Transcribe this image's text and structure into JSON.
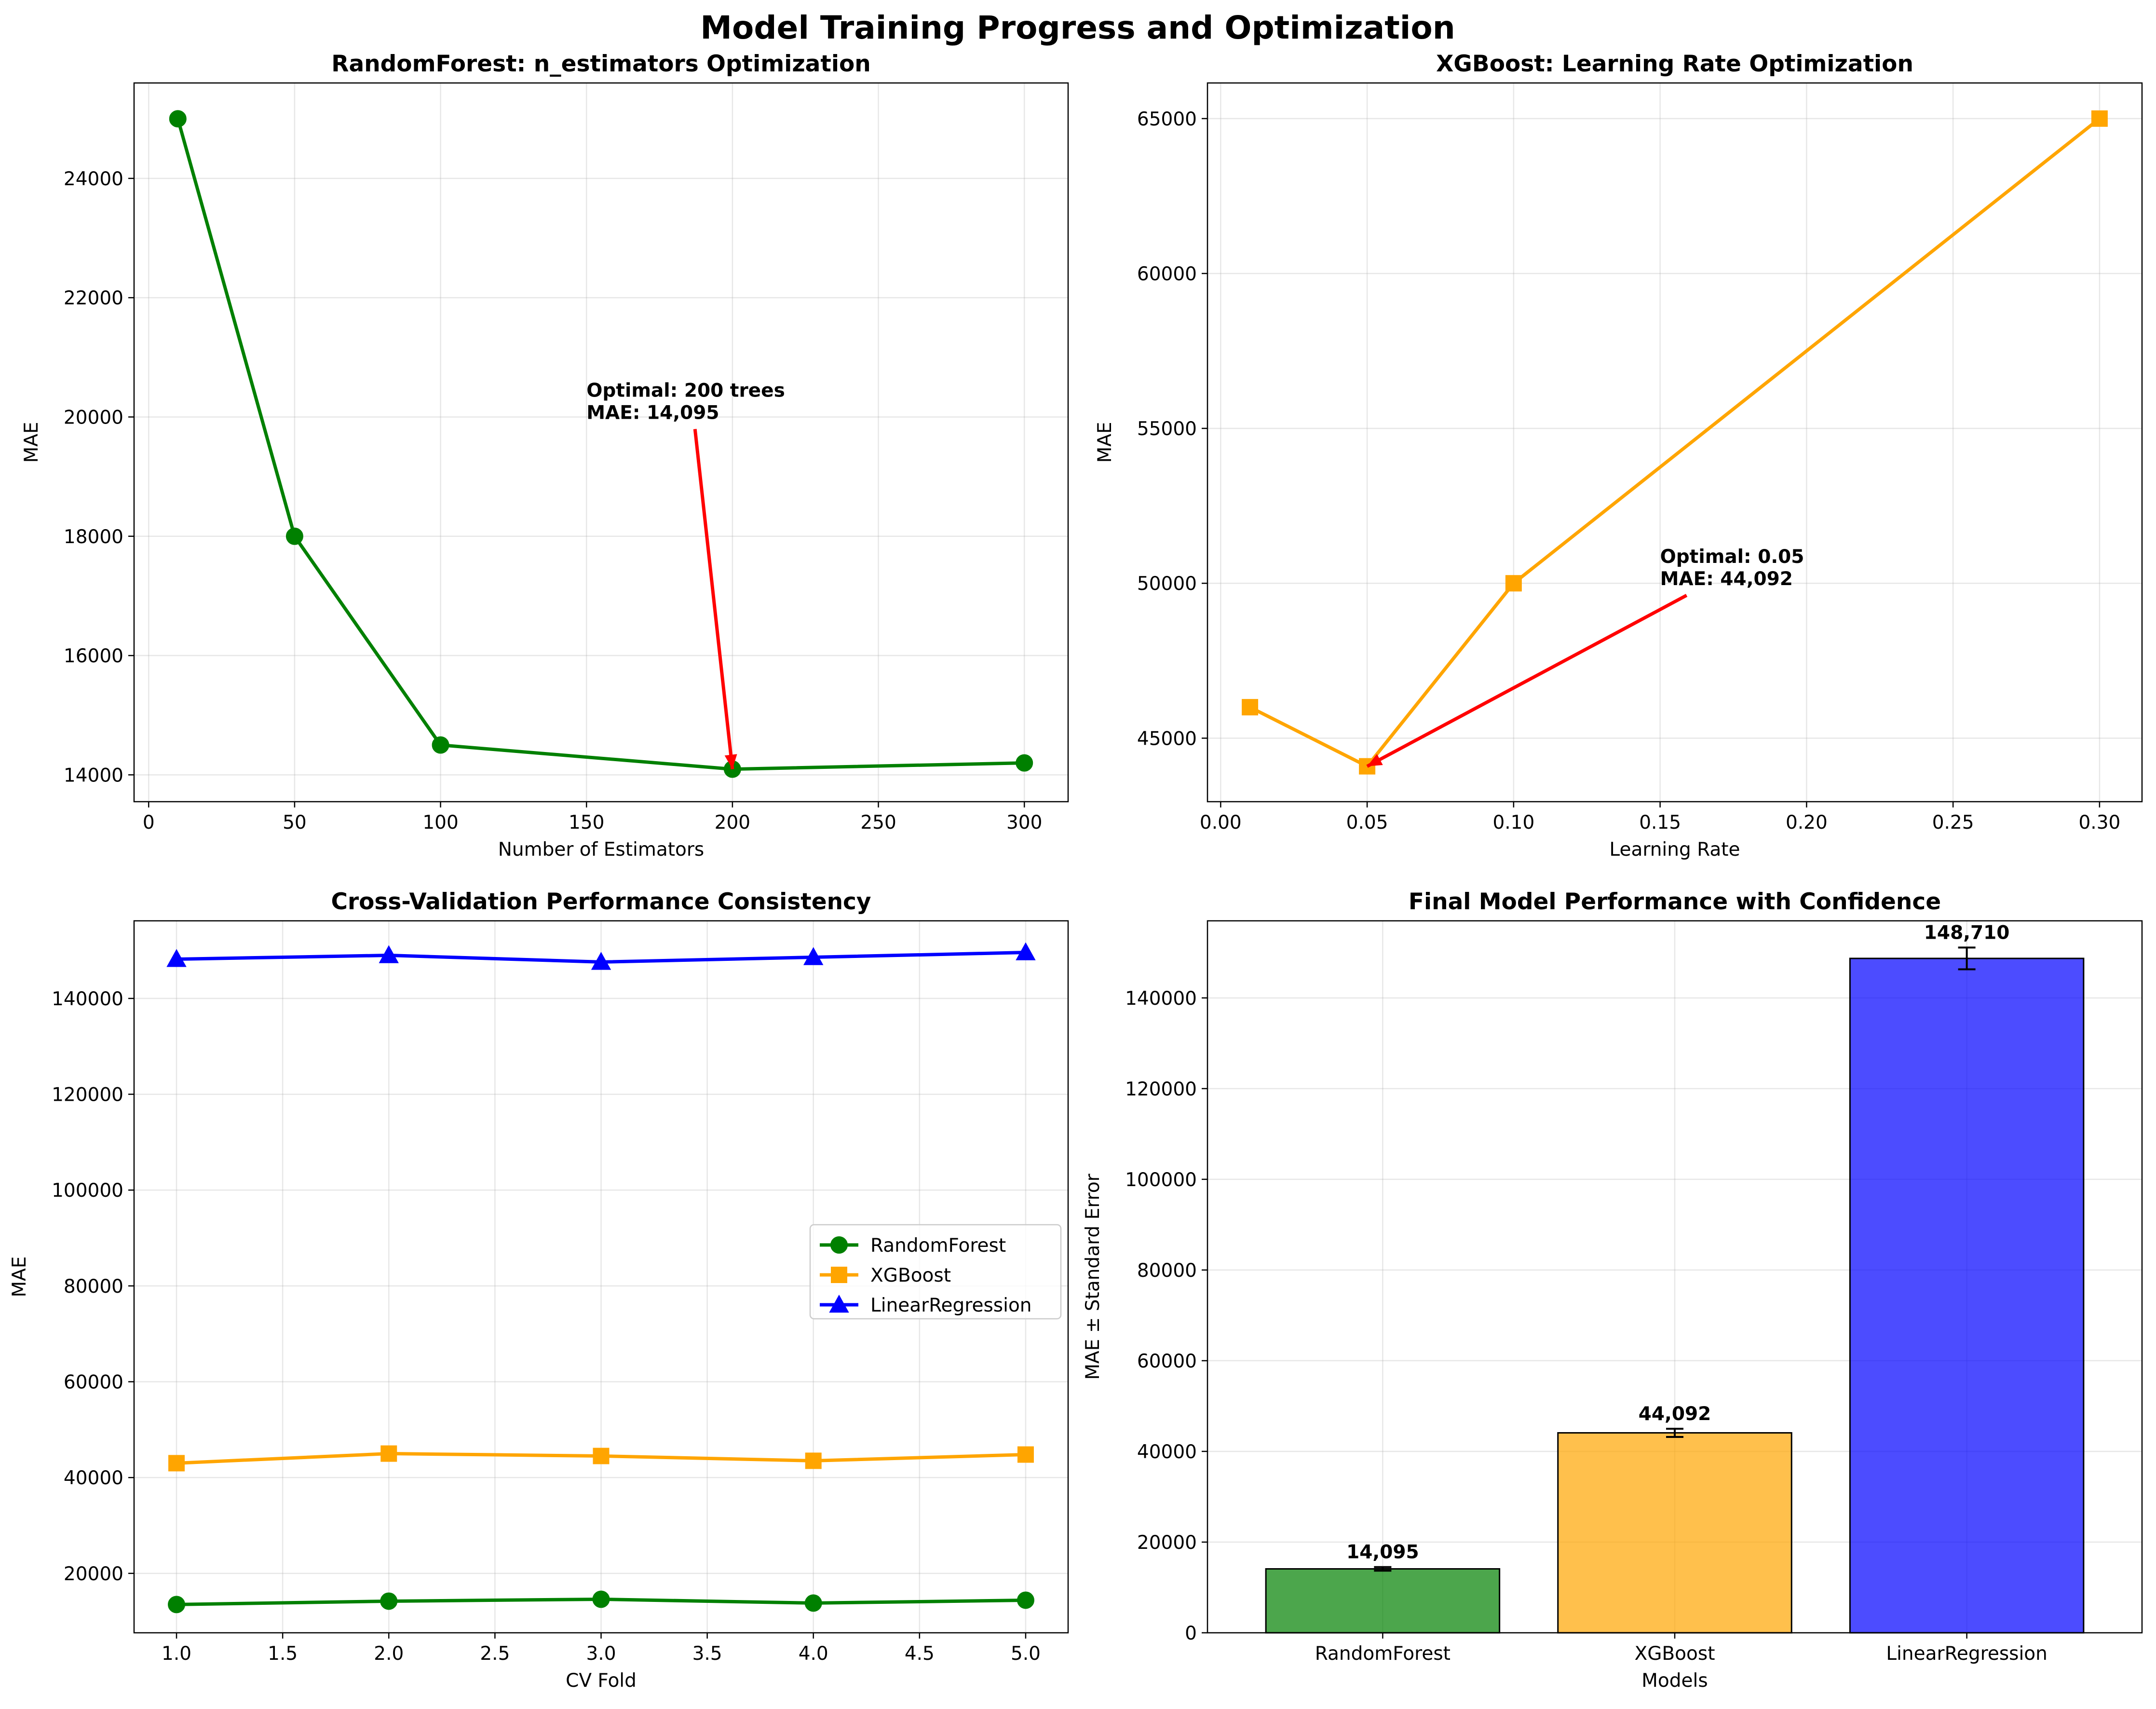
{
  "figure": {
    "title": "Model Training Progress and Optimization"
  },
  "chart_data": [
    {
      "id": "rf",
      "type": "line",
      "title": "RandomForest: n_estimators Optimization",
      "xlabel": "Number of Estimators",
      "ylabel": "MAE",
      "xlim": [
        -5,
        315
      ],
      "ylim": [
        13550,
        25600
      ],
      "xticks": [
        0,
        50,
        100,
        150,
        200,
        250,
        300
      ],
      "yticks": [
        14000,
        16000,
        18000,
        20000,
        22000,
        24000
      ],
      "grid": true,
      "series": [
        {
          "color": "#008000",
          "marker": "circle",
          "x": [
            10,
            50,
            100,
            200,
            300
          ],
          "y": [
            25000,
            18000,
            14500,
            14095,
            14200
          ]
        }
      ],
      "annotation": {
        "lines": [
          "Optimal: 200 trees",
          "MAE: 14,095"
        ],
        "text_at": [
          150,
          20000
        ],
        "arrow_to": [
          200,
          14095
        ],
        "color": "#ff0000"
      }
    },
    {
      "id": "xgb",
      "type": "line",
      "title": "XGBoost: Learning Rate Optimization",
      "xlabel": "Learning Rate",
      "ylabel": "MAE",
      "xlim": [
        -0.0045,
        0.3145
      ],
      "ylim": [
        42950,
        66150
      ],
      "xticks": [
        0.0,
        0.05,
        0.1,
        0.15,
        0.2,
        0.25,
        0.3
      ],
      "xtick_labels": [
        "0.00",
        "0.05",
        "0.10",
        "0.15",
        "0.20",
        "0.25",
        "0.30"
      ],
      "yticks": [
        45000,
        50000,
        55000,
        60000,
        65000
      ],
      "grid": true,
      "series": [
        {
          "color": "#ffa500",
          "marker": "square",
          "x": [
            0.01,
            0.05,
            0.1,
            0.3
          ],
          "y": [
            46000,
            44092,
            50000,
            65000
          ]
        }
      ],
      "annotation": {
        "lines": [
          "Optimal: 0.05",
          "MAE: 44,092"
        ],
        "text_at": [
          0.15,
          50000
        ],
        "arrow_to": [
          0.05,
          44092
        ],
        "color": "#ff0000"
      }
    },
    {
      "id": "cv",
      "type": "line",
      "title": "Cross-Validation Performance Consistency",
      "xlabel": "CV Fold",
      "ylabel": "MAE",
      "xlim": [
        0.8,
        5.2
      ],
      "ylim": [
        7600,
        156200
      ],
      "xticks": [
        1.0,
        1.5,
        2.0,
        2.5,
        3.0,
        3.5,
        4.0,
        4.5,
        5.0
      ],
      "xtick_labels": [
        "1.0",
        "1.5",
        "2.0",
        "2.5",
        "3.0",
        "3.5",
        "4.0",
        "4.5",
        "5.0"
      ],
      "yticks": [
        20000,
        40000,
        60000,
        80000,
        100000,
        120000,
        140000
      ],
      "grid": true,
      "legend_position": "center-right",
      "series": [
        {
          "name": "RandomForest",
          "color": "#008000",
          "marker": "circle",
          "x": [
            1,
            2,
            3,
            4,
            5
          ],
          "y": [
            13500,
            14200,
            14600,
            13800,
            14400
          ]
        },
        {
          "name": "XGBoost",
          "color": "#ffa500",
          "marker": "square",
          "x": [
            1,
            2,
            3,
            4,
            5
          ],
          "y": [
            43000,
            45000,
            44500,
            43500,
            44800
          ]
        },
        {
          "name": "LinearRegression",
          "color": "#0000ff",
          "marker": "triangle",
          "x": [
            1,
            2,
            3,
            4,
            5
          ],
          "y": [
            148200,
            149000,
            147600,
            148600,
            149600
          ]
        }
      ]
    },
    {
      "id": "final",
      "type": "bar",
      "title": "Final Model Performance with Confidence",
      "xlabel": "Models",
      "ylabel": "MAE ± Standard Error",
      "ylim": [
        0,
        157000
      ],
      "yticks": [
        0,
        20000,
        40000,
        60000,
        80000,
        100000,
        120000,
        140000
      ],
      "grid": true,
      "categories": [
        "RandomForest",
        "XGBoost",
        "LinearRegression"
      ],
      "values": [
        14095,
        44092,
        148710
      ],
      "errors": [
        400,
        900,
        2400
      ],
      "value_labels": [
        "14,095",
        "44,092",
        "148,710"
      ],
      "colors": [
        "#008000",
        "#ffa500",
        "#0000ff"
      ],
      "alpha": 0.7
    }
  ]
}
